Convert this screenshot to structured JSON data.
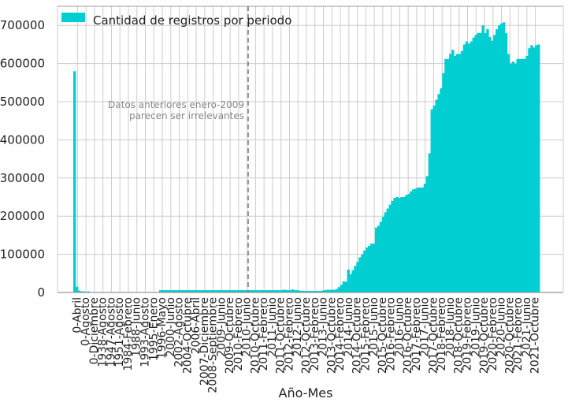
{
  "chart_data": {
    "type": "bar",
    "title": "",
    "xlabel": "Año-Mes",
    "ylabel": "",
    "ylim": [
      0,
      750000
    ],
    "yticks": [
      0,
      100000,
      200000,
      300000,
      400000,
      500000,
      600000,
      700000
    ],
    "grid": true,
    "legend": {
      "placement": "top-left",
      "entries": [
        "Cantidad de registros por periodo"
      ]
    },
    "series_color": "#00CED1",
    "vline": {
      "after_category_index": 36,
      "style": "dashed",
      "color": "#777777"
    },
    "annotation": {
      "lines": [
        "Datos anteriores enero-2009",
        "parecen ser irrelevantes"
      ]
    },
    "category_tick_labels": [
      "0-Abril",
      "0-Agosto",
      "0-Diciembre",
      "1938-Agosto",
      "1947-Agosto",
      "1951-Agosto",
      "1984-Febrero",
      "1988-Junio",
      "1993-Agosto",
      "1995-Enero",
      "1996-Mayo",
      "2000-Junio",
      "2002-Agosto",
      "2004-Octubre",
      "2006-Abril",
      "2007-Diciembre",
      "2008-Septiembre",
      "2009-Junio",
      "2009-Octubre",
      "2010-Febrero",
      "2010-Junio",
      "2010-Octubre",
      "2011-Febrero",
      "2011-Junio",
      "2011-Octubre",
      "2012-Febrero",
      "2012-Junio",
      "2012-Octubre",
      "2013-Febrero",
      "2013-Junio",
      "2013-Octubre",
      "2014-Febrero",
      "2014-Junio",
      "2014-Octubre",
      "2015-Febrero",
      "2015-Junio",
      "2015-Octubre",
      "2016-Febrero",
      "2016-Junio",
      "2016-Octubre",
      "2017-Febrero",
      "2017-Junio",
      "2017-Octubre",
      "2018-Febrero",
      "2018-Junio",
      "2018-Octubre",
      "2019-Febrero",
      "2019-Junio",
      "2019-Octubre",
      "2020-Febrero",
      "2020-Junio",
      "2020-Octubre",
      "2021-Febrero",
      "2021-Junio",
      "2021-Octubre"
    ],
    "values": [
      580000,
      15000,
      5000,
      3000,
      3000,
      2000,
      3000,
      1000,
      1000,
      500,
      500,
      500,
      500,
      500,
      500,
      500,
      500,
      500,
      500,
      500,
      500,
      500,
      500,
      500,
      500,
      500,
      500,
      500,
      500,
      500,
      500,
      500,
      500,
      500,
      500,
      500,
      500,
      6000,
      6000,
      6000,
      6000,
      6000,
      6000,
      6000,
      6000,
      6000,
      6000,
      6000,
      6000,
      6000,
      6000,
      6000,
      6000,
      6000,
      6000,
      6000,
      6000,
      6000,
      6000,
      6000,
      6000,
      6000,
      6000,
      6000,
      6000,
      6000,
      6000,
      6000,
      6000,
      6000,
      6000,
      6000,
      6000,
      6000,
      6000,
      6000,
      6000,
      6000,
      6000,
      6000,
      6000,
      6000,
      6000,
      6000,
      6000,
      6000,
      6000,
      6000,
      6000,
      6000,
      7000,
      7000,
      6000,
      6000,
      8000,
      6000,
      6000,
      5000,
      4000,
      4000,
      4000,
      4000,
      4000,
      4000,
      4000,
      4000,
      4000,
      5000,
      6000,
      7000,
      7000,
      7000,
      7000,
      9000,
      14000,
      20000,
      29000,
      28000,
      60000,
      48000,
      58000,
      70000,
      80000,
      92000,
      100000,
      110000,
      118000,
      122000,
      128000,
      128000,
      170000,
      175000,
      185000,
      198000,
      210000,
      220000,
      230000,
      240000,
      248000,
      250000,
      248000,
      250000,
      250000,
      255000,
      258000,
      265000,
      270000,
      272000,
      275000,
      275000,
      275000,
      285000,
      305000,
      365000,
      480000,
      490000,
      505000,
      520000,
      535000,
      575000,
      612000,
      612000,
      625000,
      636000,
      620000,
      625000,
      625000,
      633000,
      650000,
      658000,
      652000,
      658000,
      668000,
      675000,
      680000,
      680000,
      700000,
      680000,
      690000,
      670000,
      660000,
      675000,
      690000,
      700000,
      705000,
      708000,
      680000,
      625000,
      600000,
      605000,
      600000,
      612000,
      612000,
      612000,
      612000,
      620000,
      640000,
      648000,
      642000,
      648000,
      650000
    ]
  }
}
